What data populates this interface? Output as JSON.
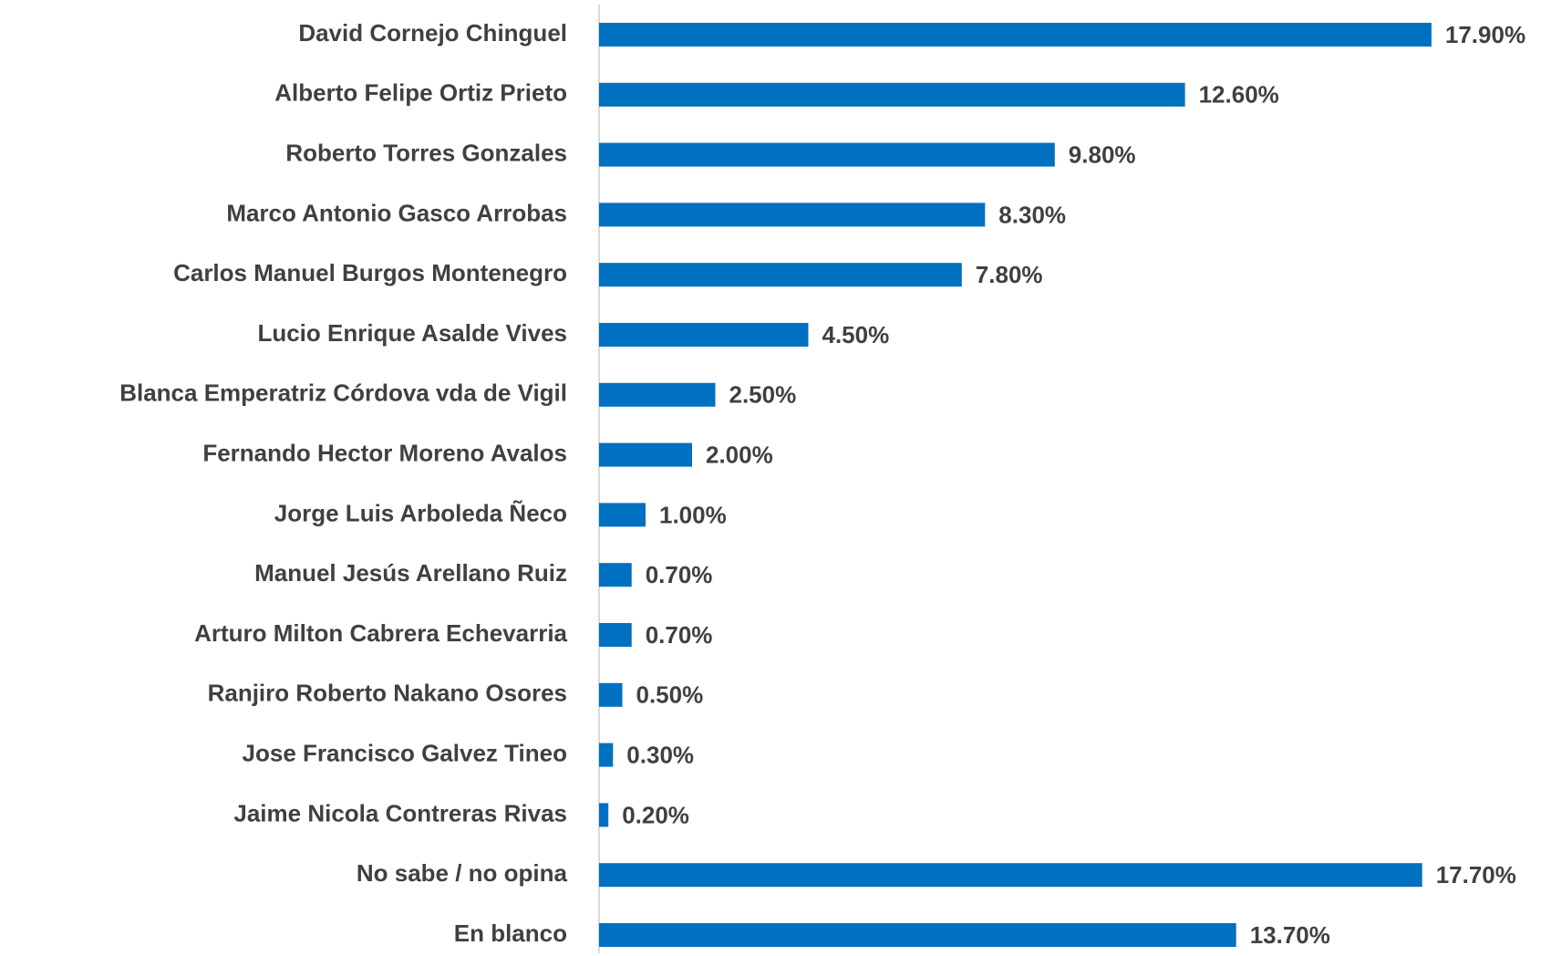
{
  "chart_data": {
    "type": "barh",
    "categories": [
      "David Cornejo Chinguel",
      "Alberto Felipe Ortiz Prieto",
      "Roberto Torres Gonzales",
      "Marco Antonio Gasco Arrobas",
      "Carlos Manuel Burgos Montenegro",
      "Lucio Enrique Asalde Vives",
      "Blanca Emperatriz Córdova vda de Vigil",
      "Fernando Hector Moreno Avalos",
      "Jorge Luis Arboleda Ñeco",
      "Manuel Jesús Arellano Ruiz",
      "Arturo Milton Cabrera Echevarria",
      "Ranjiro Roberto Nakano Osores",
      "Jose Francisco Galvez Tineo",
      "Jaime Nicola Contreras Rivas",
      "No sabe / no opina",
      "En blanco"
    ],
    "values": [
      17.9,
      12.6,
      9.8,
      8.3,
      7.8,
      4.5,
      2.5,
      2.0,
      1.0,
      0.7,
      0.7,
      0.5,
      0.3,
      0.2,
      17.7,
      13.7
    ],
    "value_labels": [
      "17.90%",
      "12.60%",
      "9.80%",
      "8.30%",
      "7.80%",
      "4.50%",
      "2.50%",
      "2.00%",
      "1.00%",
      "0.70%",
      "0.70%",
      "0.50%",
      "0.30%",
      "0.20%",
      "17.70%",
      "13.70%"
    ],
    "color": "#0070c0",
    "xlim": [
      0,
      20
    ]
  }
}
